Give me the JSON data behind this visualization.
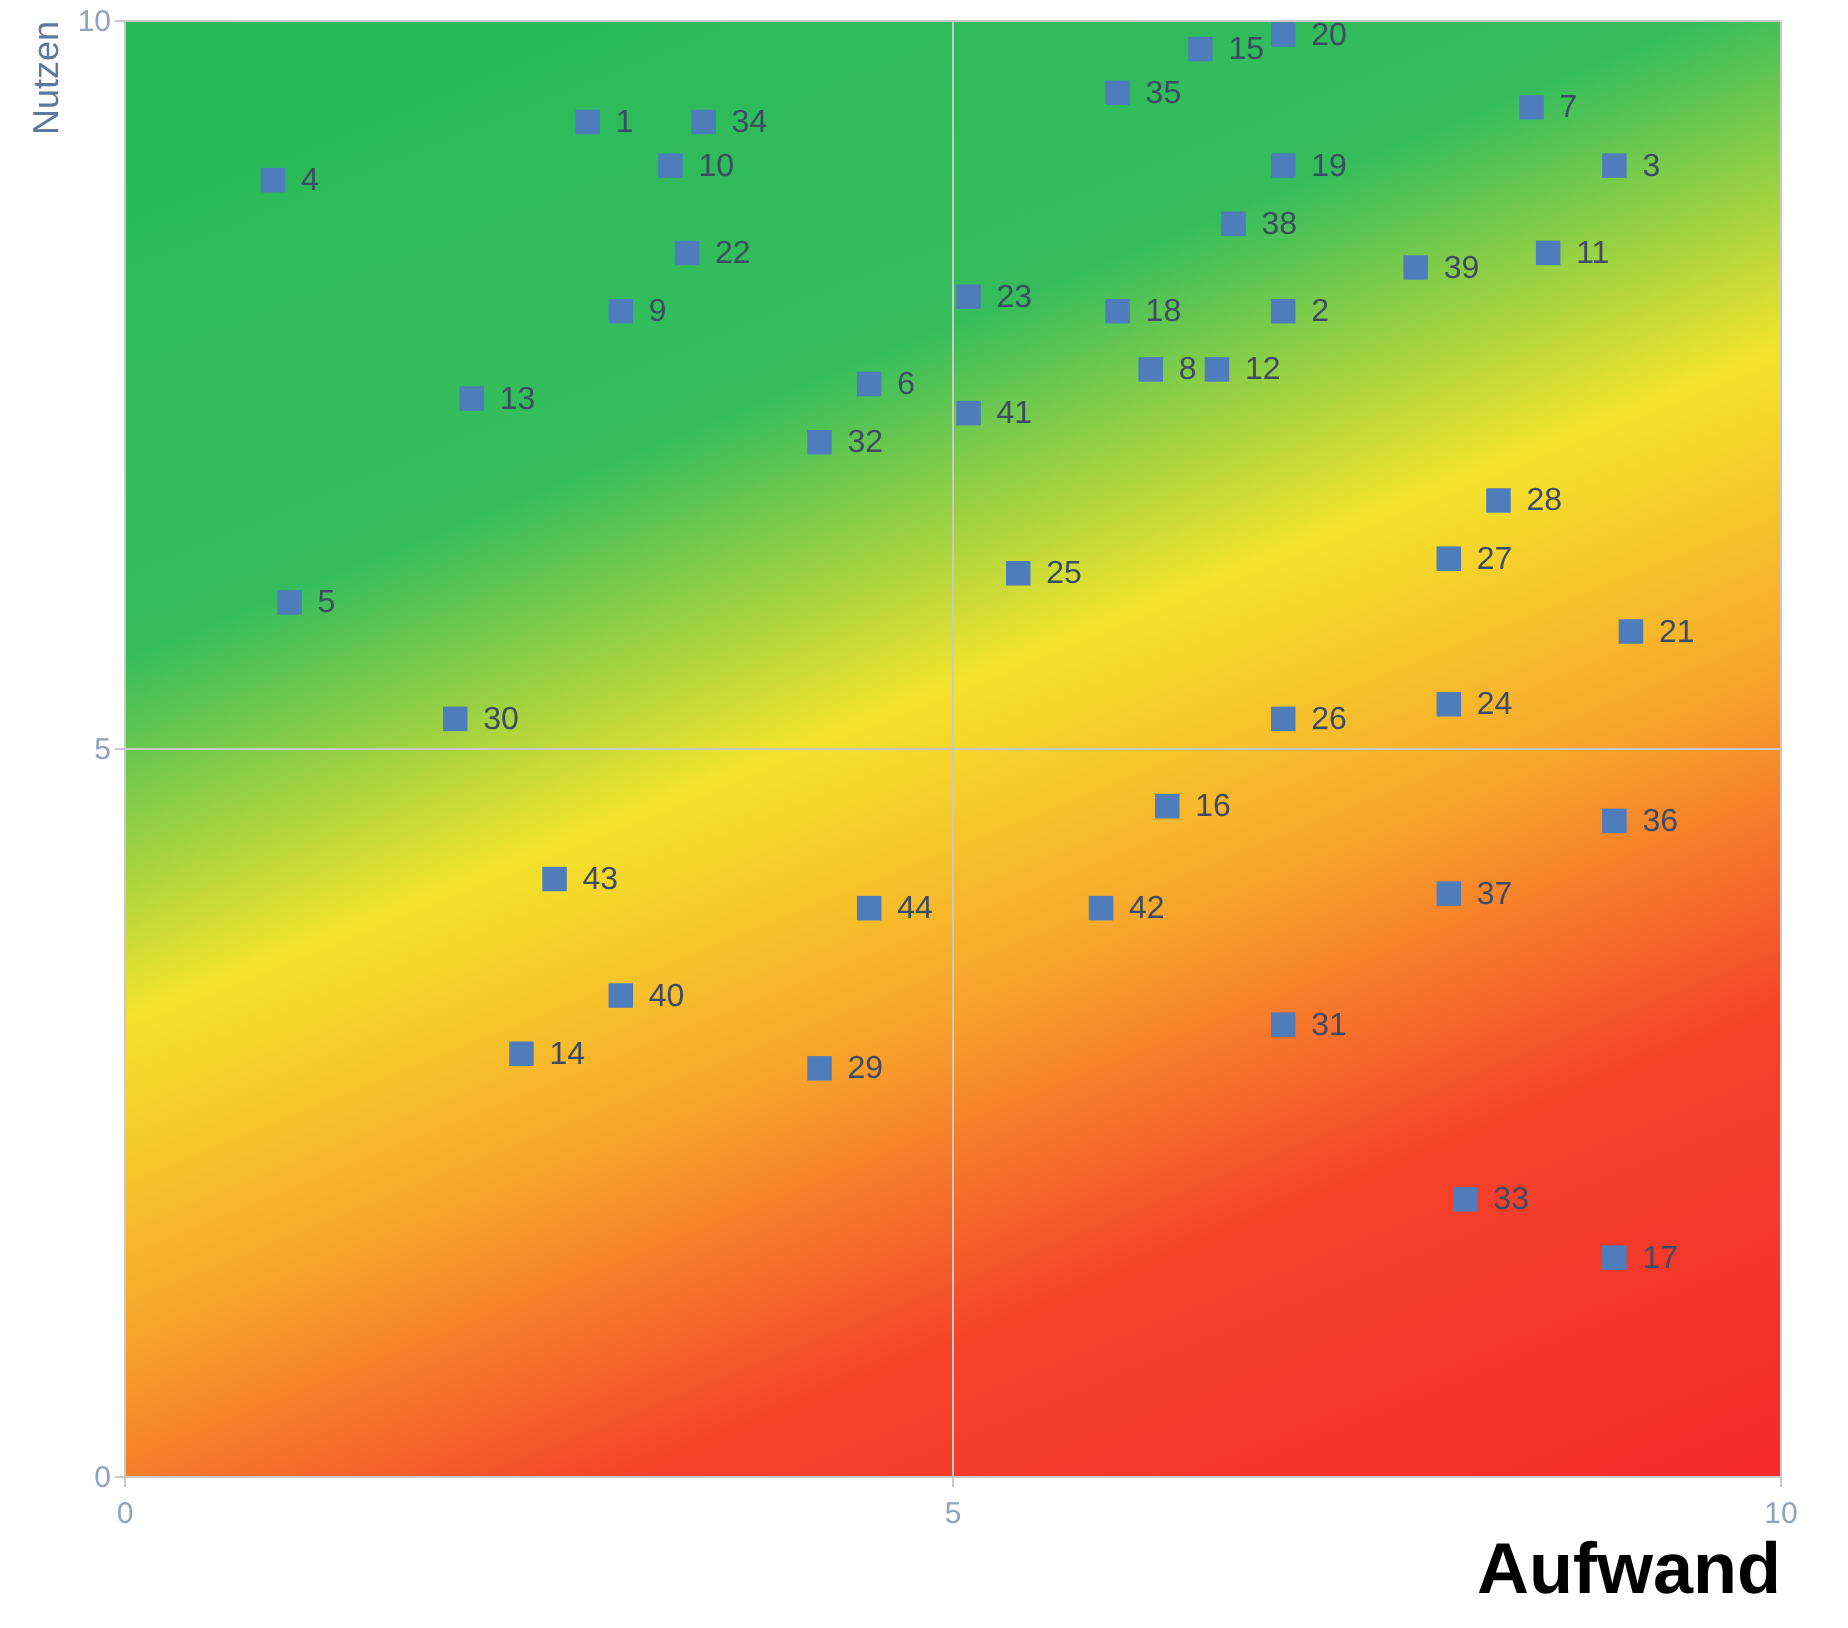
{
  "chart_data": {
    "type": "scatter",
    "xlabel": "Aufwand",
    "ylabel": "Nutzen",
    "xlim": [
      0,
      10
    ],
    "ylim": [
      0,
      10
    ],
    "xticks": [
      0,
      5,
      10
    ],
    "yticks": [
      0,
      5,
      10
    ],
    "grid": true,
    "marker": "square",
    "series": [
      {
        "color": "#4f7cba",
        "x": [
          2.8,
          7.0,
          9.0,
          0.9,
          1.0,
          4.5,
          8.5,
          6.2,
          3.0,
          3.3,
          8.6,
          6.6,
          2.1,
          2.4,
          6.5,
          6.3,
          9.0,
          6.0,
          7.0,
          7.0,
          9.1,
          3.4,
          5.1,
          8.0,
          5.4,
          7.0,
          8.0,
          8.3,
          4.2,
          2.0,
          7.0,
          4.2,
          8.1,
          3.5,
          6.0,
          9.0,
          8.0,
          6.7,
          7.8,
          3.0,
          5.1,
          5.9,
          2.6,
          4.5
        ],
        "values": [
          9.3,
          8.0,
          9.0,
          8.9,
          6.0,
          7.5,
          9.4,
          7.6,
          8.0,
          9.0,
          8.4,
          7.6,
          7.4,
          2.9,
          9.8,
          4.6,
          1.5,
          8.0,
          9.0,
          9.9,
          5.8,
          8.4,
          8.1,
          5.3,
          6.2,
          5.2,
          6.3,
          6.7,
          2.8,
          5.2,
          3.1,
          7.1,
          1.9,
          9.3,
          9.5,
          4.5,
          4.0,
          8.6,
          8.3,
          3.3,
          7.3,
          3.9,
          4.1,
          3.9
        ]
      }
    ],
    "annotations": [
      {
        "text": "1",
        "x": 2.8,
        "y": 9.3
      },
      {
        "text": "2",
        "x": 7.0,
        "y": 8.0
      },
      {
        "text": "3",
        "x": 9.0,
        "y": 9.0
      },
      {
        "text": "4",
        "x": 0.9,
        "y": 8.9
      },
      {
        "text": "5",
        "x": 1.0,
        "y": 6.0
      },
      {
        "text": "6",
        "x": 4.5,
        "y": 7.5
      },
      {
        "text": "7",
        "x": 8.5,
        "y": 9.4
      },
      {
        "text": "8",
        "x": 6.2,
        "y": 7.6
      },
      {
        "text": "9",
        "x": 3.0,
        "y": 8.0
      },
      {
        "text": "10",
        "x": 3.3,
        "y": 9.0
      },
      {
        "text": "11",
        "x": 8.6,
        "y": 8.4
      },
      {
        "text": "12",
        "x": 6.6,
        "y": 7.6
      },
      {
        "text": "13",
        "x": 2.1,
        "y": 7.4
      },
      {
        "text": "14",
        "x": 2.4,
        "y": 2.9
      },
      {
        "text": "15",
        "x": 6.5,
        "y": 9.8
      },
      {
        "text": "16",
        "x": 6.3,
        "y": 4.6
      },
      {
        "text": "17",
        "x": 9.0,
        "y": 1.5
      },
      {
        "text": "18",
        "x": 6.0,
        "y": 8.0
      },
      {
        "text": "19",
        "x": 7.0,
        "y": 9.0
      },
      {
        "text": "20",
        "x": 7.0,
        "y": 9.9
      },
      {
        "text": "21",
        "x": 9.1,
        "y": 5.8
      },
      {
        "text": "22",
        "x": 3.4,
        "y": 8.4
      },
      {
        "text": "23",
        "x": 5.1,
        "y": 8.1
      },
      {
        "text": "24",
        "x": 8.0,
        "y": 5.3
      },
      {
        "text": "25",
        "x": 5.4,
        "y": 6.2
      },
      {
        "text": "26",
        "x": 7.0,
        "y": 5.2
      },
      {
        "text": "27",
        "x": 8.0,
        "y": 6.3
      },
      {
        "text": "28",
        "x": 8.3,
        "y": 6.7
      },
      {
        "text": "29",
        "x": 4.2,
        "y": 2.8
      },
      {
        "text": "30",
        "x": 2.0,
        "y": 5.2
      },
      {
        "text": "31",
        "x": 7.0,
        "y": 3.1
      },
      {
        "text": "32",
        "x": 4.2,
        "y": 7.1
      },
      {
        "text": "33",
        "x": 8.1,
        "y": 1.9
      },
      {
        "text": "34",
        "x": 3.5,
        "y": 9.3
      },
      {
        "text": "35",
        "x": 6.0,
        "y": 9.5
      },
      {
        "text": "36",
        "x": 9.0,
        "y": 4.5
      },
      {
        "text": "37",
        "x": 8.0,
        "y": 4.0
      },
      {
        "text": "38",
        "x": 6.7,
        "y": 8.6
      },
      {
        "text": "39",
        "x": 7.8,
        "y": 8.3
      },
      {
        "text": "40",
        "x": 3.0,
        "y": 3.3
      },
      {
        "text": "41",
        "x": 5.1,
        "y": 7.3
      },
      {
        "text": "42",
        "x": 5.9,
        "y": 3.9
      },
      {
        "text": "43",
        "x": 2.6,
        "y": 4.1
      },
      {
        "text": "44",
        "x": 4.5,
        "y": 3.9
      }
    ]
  }
}
